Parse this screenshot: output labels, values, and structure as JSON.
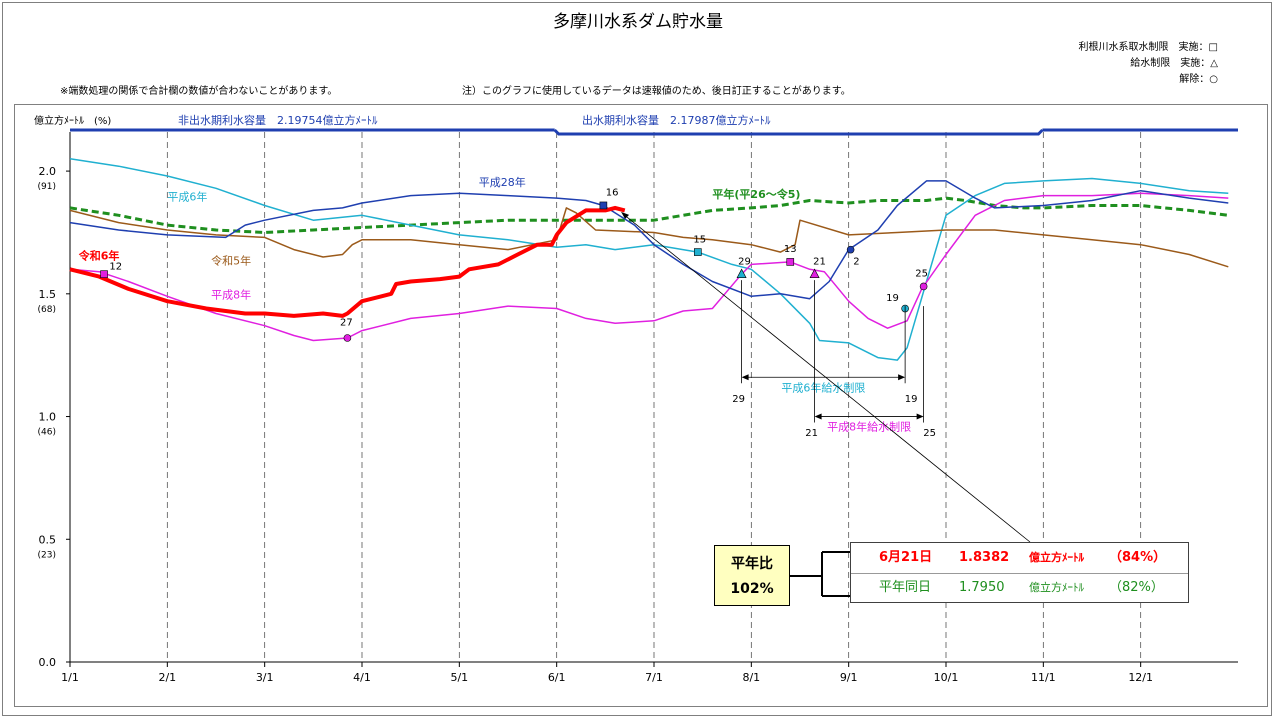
{
  "header": {
    "title": "多摩川水系ダム貯水量",
    "legend_lines": [
      "利根川水系取水制限　実施：□",
      "給水制限　実施：△",
      "解除：○"
    ],
    "note_left": "※端数処理の関係で合計欄の数値が合わないことがあります。",
    "note_right": "注）このグラフに使用しているデータは速報値のため、後日訂正することがあります。"
  },
  "chart_data": {
    "type": "line",
    "title": "多摩川水系ダム貯水量",
    "ylabel": "億立方ﾒｰﾄﾙ　(%)",
    "ylim": [
      0,
      2.2
    ],
    "yticks": [
      {
        "value": 0.0,
        "label": "0.0",
        "pct": ""
      },
      {
        "value": 0.5,
        "label": "0.5",
        "pct": "(23)"
      },
      {
        "value": 1.0,
        "label": "1.0",
        "pct": "(46)"
      },
      {
        "value": 1.5,
        "label": "1.5",
        "pct": "(68)"
      },
      {
        "value": 2.0,
        "label": "2.0",
        "pct": "(91)"
      }
    ],
    "xlim": [
      1,
      13
    ],
    "xticks": [
      "1/1",
      "2/1",
      "3/1",
      "4/1",
      "5/1",
      "6/1",
      "7/1",
      "8/1",
      "9/1",
      "10/1",
      "11/1",
      "12/1"
    ],
    "capacity": {
      "non_flood": {
        "label": "非出水期利水容量　2.19754億立方ﾒｰﾄﾙ",
        "value": 2.19754
      },
      "flood": {
        "label": "出水期利水容量　2.17987億立方ﾒｰﾄﾙ",
        "value": 2.17987,
        "start": 6.0,
        "end": 10.97
      }
    },
    "series": [
      {
        "name": "令和6年",
        "color": "#ff0000",
        "width": 4,
        "points": [
          [
            1,
            1.6
          ],
          [
            1.3,
            1.57
          ],
          [
            1.6,
            1.52
          ],
          [
            2,
            1.47
          ],
          [
            2.4,
            1.44
          ],
          [
            2.8,
            1.42
          ],
          [
            3,
            1.42
          ],
          [
            3.3,
            1.41
          ],
          [
            3.6,
            1.42
          ],
          [
            3.8,
            1.41
          ],
          [
            3.85,
            1.42
          ],
          [
            4,
            1.47
          ],
          [
            4.3,
            1.5
          ],
          [
            4.35,
            1.54
          ],
          [
            4.5,
            1.55
          ],
          [
            4.8,
            1.56
          ],
          [
            5,
            1.57
          ],
          [
            5.1,
            1.6
          ],
          [
            5.4,
            1.62
          ],
          [
            5.6,
            1.66
          ],
          [
            5.8,
            1.7
          ],
          [
            5.95,
            1.7
          ],
          [
            6,
            1.74
          ],
          [
            6.1,
            1.79
          ],
          [
            6.3,
            1.84
          ],
          [
            6.5,
            1.84
          ],
          [
            6.6,
            1.85
          ],
          [
            6.7,
            1.84
          ]
        ]
      },
      {
        "name": "平年(平26～令5)",
        "color": "#1f8f1f",
        "width": 3,
        "dash": "7,4",
        "points": [
          [
            1,
            1.85
          ],
          [
            1.5,
            1.82
          ],
          [
            2,
            1.78
          ],
          [
            2.5,
            1.76
          ],
          [
            3,
            1.75
          ],
          [
            3.5,
            1.76
          ],
          [
            4,
            1.77
          ],
          [
            4.5,
            1.78
          ],
          [
            5,
            1.79
          ],
          [
            5.5,
            1.8
          ],
          [
            6,
            1.8
          ],
          [
            6.5,
            1.8
          ],
          [
            7,
            1.8
          ],
          [
            7.3,
            1.82
          ],
          [
            7.6,
            1.84
          ],
          [
            8,
            1.85
          ],
          [
            8.3,
            1.86
          ],
          [
            8.6,
            1.88
          ],
          [
            9,
            1.87
          ],
          [
            9.3,
            1.88
          ],
          [
            9.6,
            1.88
          ],
          [
            9.8,
            1.88
          ],
          [
            10,
            1.89
          ],
          [
            10.2,
            1.88
          ],
          [
            10.5,
            1.86
          ],
          [
            10.8,
            1.85
          ],
          [
            11,
            1.85
          ],
          [
            11.5,
            1.86
          ],
          [
            12,
            1.86
          ],
          [
            12.5,
            1.84
          ],
          [
            12.9,
            1.82
          ]
        ]
      },
      {
        "name": "平成28年",
        "color": "#1f3fb0",
        "width": 1.5,
        "points": [
          [
            1,
            1.79
          ],
          [
            1.5,
            1.76
          ],
          [
            2,
            1.74
          ],
          [
            2.6,
            1.73
          ],
          [
            2.8,
            1.78
          ],
          [
            3,
            1.8
          ],
          [
            3.5,
            1.84
          ],
          [
            3.8,
            1.85
          ],
          [
            4,
            1.87
          ],
          [
            4.5,
            1.9
          ],
          [
            5,
            1.91
          ],
          [
            5.5,
            1.9
          ],
          [
            6,
            1.89
          ],
          [
            6.3,
            1.88
          ],
          [
            6.48,
            1.86
          ],
          [
            6.8,
            1.78
          ],
          [
            7,
            1.7
          ],
          [
            7.3,
            1.62
          ],
          [
            7.6,
            1.55
          ],
          [
            8,
            1.49
          ],
          [
            8.3,
            1.5
          ],
          [
            8.6,
            1.48
          ],
          [
            8.8,
            1.55
          ],
          [
            9.0,
            1.68
          ],
          [
            9.3,
            1.76
          ],
          [
            9.5,
            1.86
          ],
          [
            9.8,
            1.96
          ],
          [
            10,
            1.96
          ],
          [
            10.3,
            1.89
          ],
          [
            10.5,
            1.85
          ],
          [
            11,
            1.86
          ],
          [
            11.5,
            1.88
          ],
          [
            12,
            1.92
          ],
          [
            12.5,
            1.89
          ],
          [
            12.9,
            1.87
          ]
        ]
      },
      {
        "name": "平成6年",
        "color": "#20b0d0",
        "width": 1.5,
        "points": [
          [
            1,
            2.05
          ],
          [
            1.5,
            2.02
          ],
          [
            2,
            1.98
          ],
          [
            2.5,
            1.93
          ],
          [
            3,
            1.86
          ],
          [
            3.5,
            1.8
          ],
          [
            4,
            1.82
          ],
          [
            4.5,
            1.78
          ],
          [
            5,
            1.74
          ],
          [
            5.5,
            1.72
          ],
          [
            6,
            1.69
          ],
          [
            6.3,
            1.7
          ],
          [
            6.6,
            1.68
          ],
          [
            7,
            1.7
          ],
          [
            7.45,
            1.67
          ],
          [
            7.8,
            1.62
          ],
          [
            8,
            1.6
          ],
          [
            8.3,
            1.5
          ],
          [
            8.6,
            1.38
          ],
          [
            8.7,
            1.31
          ],
          [
            9,
            1.3
          ],
          [
            9.3,
            1.24
          ],
          [
            9.5,
            1.23
          ],
          [
            9.6,
            1.28
          ],
          [
            9.8,
            1.55
          ],
          [
            10,
            1.82
          ],
          [
            10.3,
            1.9
          ],
          [
            10.6,
            1.95
          ],
          [
            11,
            1.96
          ],
          [
            11.5,
            1.97
          ],
          [
            12,
            1.95
          ],
          [
            12.5,
            1.92
          ],
          [
            12.9,
            1.91
          ]
        ]
      },
      {
        "name": "令和5年",
        "color": "#9b5a1a",
        "width": 1.5,
        "points": [
          [
            1,
            1.84
          ],
          [
            1.5,
            1.79
          ],
          [
            2,
            1.76
          ],
          [
            2.5,
            1.74
          ],
          [
            3,
            1.73
          ],
          [
            3.3,
            1.68
          ],
          [
            3.6,
            1.65
          ],
          [
            3.8,
            1.66
          ],
          [
            3.9,
            1.7
          ],
          [
            4,
            1.72
          ],
          [
            4.5,
            1.72
          ],
          [
            5,
            1.7
          ],
          [
            5.5,
            1.68
          ],
          [
            6,
            1.72
          ],
          [
            6.1,
            1.85
          ],
          [
            6.2,
            1.83
          ],
          [
            6.4,
            1.76
          ],
          [
            7,
            1.75
          ],
          [
            7.3,
            1.73
          ],
          [
            7.6,
            1.72
          ],
          [
            8,
            1.7
          ],
          [
            8.3,
            1.67
          ],
          [
            8.45,
            1.7
          ],
          [
            8.5,
            1.8
          ],
          [
            9,
            1.74
          ],
          [
            9.5,
            1.75
          ],
          [
            10,
            1.76
          ],
          [
            10.5,
            1.76
          ],
          [
            11,
            1.74
          ],
          [
            11.5,
            1.72
          ],
          [
            12,
            1.7
          ],
          [
            12.5,
            1.66
          ],
          [
            12.9,
            1.61
          ]
        ]
      },
      {
        "name": "平成8年",
        "color": "#e020e0",
        "width": 1.5,
        "points": [
          [
            1,
            1.6
          ],
          [
            1.3,
            1.59
          ],
          [
            1.6,
            1.55
          ],
          [
            2,
            1.49
          ],
          [
            2.5,
            1.42
          ],
          [
            3,
            1.37
          ],
          [
            3.3,
            1.33
          ],
          [
            3.5,
            1.31
          ],
          [
            3.85,
            1.32
          ],
          [
            4,
            1.35
          ],
          [
            4.5,
            1.4
          ],
          [
            5,
            1.42
          ],
          [
            5.5,
            1.45
          ],
          [
            6,
            1.44
          ],
          [
            6.3,
            1.4
          ],
          [
            6.6,
            1.38
          ],
          [
            7,
            1.39
          ],
          [
            7.3,
            1.43
          ],
          [
            7.6,
            1.44
          ],
          [
            7.9,
            1.58
          ],
          [
            8,
            1.62
          ],
          [
            8.4,
            1.63
          ],
          [
            8.6,
            1.6
          ],
          [
            8.75,
            1.59
          ],
          [
            9,
            1.47
          ],
          [
            9.2,
            1.4
          ],
          [
            9.4,
            1.36
          ],
          [
            9.6,
            1.39
          ],
          [
            9.75,
            1.52
          ],
          [
            10,
            1.66
          ],
          [
            10.3,
            1.82
          ],
          [
            10.6,
            1.88
          ],
          [
            11,
            1.9
          ],
          [
            11.5,
            1.9
          ],
          [
            12,
            1.91
          ],
          [
            12.5,
            1.9
          ],
          [
            12.9,
            1.89
          ]
        ]
      }
    ],
    "series_labels": [
      {
        "text": "令和6年",
        "color": "#ff0000",
        "x": 1.09,
        "y": 1.64,
        "bold": true
      },
      {
        "text": "平年(平26～令5)",
        "color": "#1f8f1f",
        "x": 7.6,
        "y": 1.89,
        "bold": true
      },
      {
        "text": "平成28年",
        "color": "#1f3fb0",
        "x": 5.2,
        "y": 1.94
      },
      {
        "text": "平成6年",
        "color": "#20b0d0",
        "x": 2.0,
        "y": 1.88
      },
      {
        "text": "令和5年",
        "color": "#9b5a1a",
        "x": 2.45,
        "y": 1.62
      },
      {
        "text": "平成8年",
        "color": "#e020e0",
        "x": 2.45,
        "y": 1.48
      }
    ],
    "markers": [
      {
        "shape": "square",
        "color": "#e020e0",
        "x": 1.35,
        "y": 1.58,
        "label": "12",
        "lx": 1.47,
        "ly": 1.6
      },
      {
        "shape": "circle",
        "color": "#e020e0",
        "x": 3.85,
        "y": 1.32,
        "label": "27",
        "lx": 3.84,
        "ly": 1.37
      },
      {
        "shape": "square",
        "color": "#1f3fb0",
        "x": 6.48,
        "y": 1.86,
        "label": "16",
        "lx": 6.57,
        "ly": 1.9
      },
      {
        "shape": "square",
        "color": "#20b0d0",
        "x": 7.45,
        "y": 1.67,
        "label": "15",
        "lx": 7.47,
        "ly": 1.71
      },
      {
        "shape": "triangle",
        "color": "#20b0d0",
        "x": 7.9,
        "y": 1.58,
        "label": "29",
        "lx": 7.93,
        "ly": 1.62
      },
      {
        "shape": "square",
        "color": "#e020e0",
        "x": 8.4,
        "y": 1.63,
        "label": "13",
        "lx": 8.4,
        "ly": 1.67
      },
      {
        "shape": "triangle",
        "color": "#e020e0",
        "x": 8.65,
        "y": 1.58,
        "label": "21",
        "lx": 8.7,
        "ly": 1.62
      },
      {
        "shape": "circle",
        "color": "#1f3fb0",
        "x": 9.02,
        "y": 1.68,
        "label": "2",
        "lx": 9.08,
        "ly": 1.62
      },
      {
        "shape": "circle",
        "color": "#20b0d0",
        "x": 9.58,
        "y": 1.44,
        "label": "19",
        "lx": 9.45,
        "ly": 1.47
      },
      {
        "shape": "circle",
        "color": "#e020e0",
        "x": 9.77,
        "y": 1.53,
        "label": "25",
        "lx": 9.75,
        "ly": 1.57
      }
    ],
    "restrictions": [
      {
        "text": "平成6年給水制限",
        "color": "#20b0d0",
        "start": 7.9,
        "end": 9.58,
        "y": 1.16,
        "start_label": "29",
        "end_label": "19",
        "ly": 1.06
      },
      {
        "text": "平成8年給水制限",
        "color": "#e020e0",
        "start": 8.65,
        "end": 9.77,
        "y": 1.0,
        "start_label": "21",
        "end_label": "25",
        "ly": 0.92
      }
    ]
  },
  "summary": {
    "ratio_label": "平年比",
    "ratio_value": "102%",
    "current": {
      "date": "6月21日",
      "value": "1.8382",
      "unit": "億立方ﾒｰﾄﾙ",
      "pct": "（84%）"
    },
    "normal": {
      "date": "平年同日",
      "value": "1.7950",
      "unit": "億立方ﾒｰﾄﾙ",
      "pct": "（82%）"
    }
  }
}
